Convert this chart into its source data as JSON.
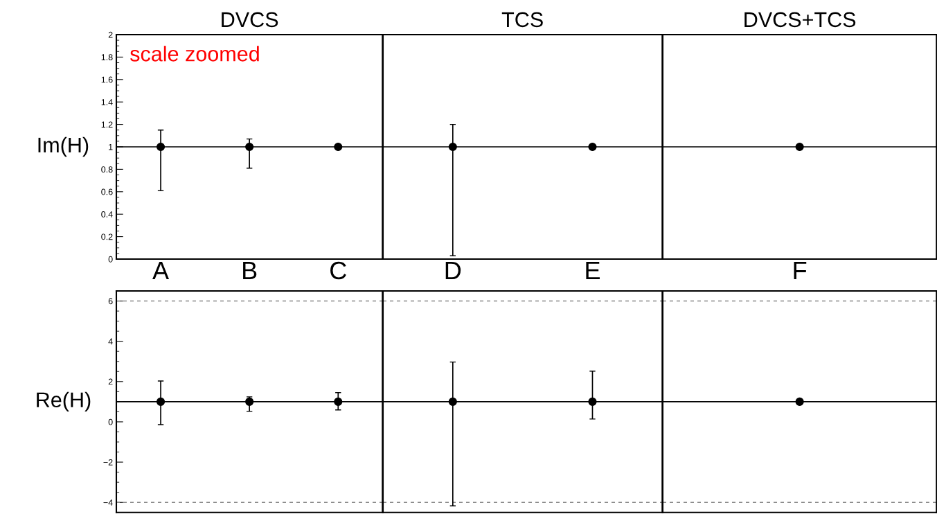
{
  "chart_data": [
    {
      "type": "scatter",
      "title": "DVCS",
      "ylabel": "Im(H)",
      "categories": [
        "A",
        "B",
        "C"
      ],
      "ylim": [
        0,
        2
      ],
      "yticks": [
        0,
        0.2,
        0.4,
        0.6,
        0.8,
        1,
        1.2,
        1.4,
        1.6,
        1.8,
        2
      ],
      "marker": "circle",
      "series": [
        {
          "color": "#000000",
          "values": [
            1,
            1,
            1
          ],
          "errors": [
            [
              0.61,
              1.15
            ],
            [
              0.81,
              1.07
            ],
            null
          ]
        }
      ],
      "ref_lines": [
        {
          "axis": "y",
          "value": 1,
          "color": "#000000",
          "line_style": "solid"
        }
      ],
      "annotations": [
        "scale zoomed"
      ]
    },
    {
      "type": "scatter",
      "title": "TCS",
      "categories": [
        "D",
        "E"
      ],
      "ylim": [
        0,
        2
      ],
      "tick_labels": "x",
      "marker": "circle",
      "series": [
        {
          "color": "#000000",
          "values": [
            1,
            1
          ],
          "errors": [
            [
              0.03,
              1.2
            ],
            null
          ]
        }
      ],
      "ref_lines": [
        {
          "axis": "y",
          "value": 1,
          "color": "#000000",
          "line_style": "solid"
        }
      ]
    },
    {
      "type": "scatter",
      "title": "DVCS+TCS",
      "categories": [
        "F"
      ],
      "ylim": [
        0,
        2
      ],
      "tick_labels": "x",
      "marker": "circle",
      "series": [
        {
          "color": "#000000",
          "values": [
            1
          ],
          "errors": [
            null
          ]
        }
      ],
      "ref_lines": [
        {
          "axis": "y",
          "value": 1,
          "color": "#000000",
          "line_style": "solid"
        }
      ]
    },
    {
      "type": "scatter",
      "ylabel": "Re(H)",
      "categories": [
        null,
        null,
        null
      ],
      "ylim": [
        -4.5,
        6.5
      ],
      "yticks": [
        {
          "value": -4,
          "label": "−4"
        },
        {
          "value": -2,
          "label": "−2"
        },
        0,
        2,
        4,
        6
      ],
      "tick_labels": "y",
      "marker": "circle",
      "series": [
        {
          "color": "#000000",
          "values": [
            1,
            1,
            1
          ],
          "errors": [
            [
              -0.14,
              2.03
            ],
            [
              0.52,
              1.24
            ],
            [
              0.59,
              1.45
            ]
          ]
        }
      ],
      "ref_lines": [
        {
          "axis": "y",
          "value": 1,
          "color": "#000000",
          "line_style": "solid"
        },
        {
          "axis": "y",
          "value": 6,
          "color": "#888888",
          "line_style": "dashed"
        },
        {
          "axis": "y",
          "value": -4,
          "color": "#888888",
          "line_style": "dashed"
        }
      ]
    },
    {
      "type": "scatter",
      "categories": [
        null,
        null
      ],
      "ylim": [
        -4.5,
        6.5
      ],
      "tick_labels": false,
      "marker": "circle",
      "series": [
        {
          "color": "#000000",
          "values": [
            1,
            1
          ],
          "errors": [
            [
              -4.17,
              2.97
            ],
            [
              0.14,
              2.52
            ]
          ]
        }
      ],
      "ref_lines": [
        {
          "axis": "y",
          "value": 1,
          "color": "#000000",
          "line_style": "solid"
        },
        {
          "axis": "y",
          "value": 6,
          "color": "#888888",
          "line_style": "dashed"
        },
        {
          "axis": "y",
          "value": -4,
          "color": "#888888",
          "line_style": "dashed"
        }
      ]
    },
    {
      "type": "scatter",
      "categories": [
        null
      ],
      "ylim": [
        -4.5,
        6.5
      ],
      "tick_labels": false,
      "marker": "circle",
      "series": [
        {
          "color": "#000000",
          "values": [
            1
          ],
          "errors": [
            null
          ]
        }
      ],
      "ref_lines": [
        {
          "axis": "y",
          "value": 1,
          "color": "#000000",
          "line_style": "solid"
        },
        {
          "axis": "y",
          "value": 6,
          "color": "#888888",
          "line_style": "dashed"
        },
        {
          "axis": "y",
          "value": -4,
          "color": "#888888",
          "line_style": "dashed"
        }
      ]
    }
  ]
}
